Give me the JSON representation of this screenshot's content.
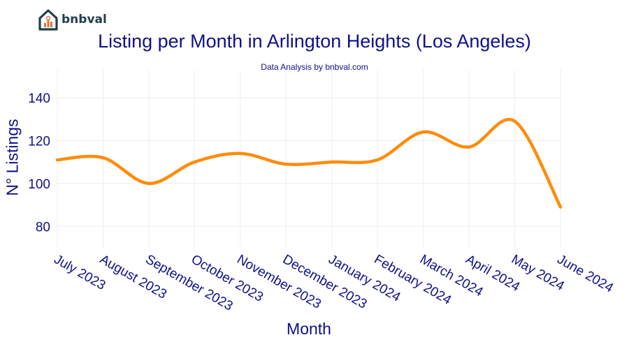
{
  "brand": {
    "name": "bnbval",
    "logo_icon": "house-chart-icon",
    "logo_color": "#1f3f4a",
    "logo_accent": "#e8733a"
  },
  "chart_data": {
    "type": "line",
    "title": "Listing per Month in Arlington Heights (Los Angeles)",
    "subtitle": "Data Analysis by bnbval.com",
    "xlabel": "Month",
    "ylabel": "N° Listings",
    "categories": [
      "July 2023",
      "August 2023",
      "September 2023",
      "October 2023",
      "November 2023",
      "December 2023",
      "January 2024",
      "February 2024",
      "March 2024",
      "April 2024",
      "May 2024",
      "June 2024"
    ],
    "series": [
      {
        "values": [
          111,
          112,
          100,
          110,
          114,
          109,
          110,
          111,
          124,
          117,
          129,
          89
        ],
        "color": "#ff8c0a"
      }
    ],
    "ylim": [
      70,
      153
    ],
    "yticks": [
      80,
      100,
      120,
      140
    ],
    "grid": true,
    "text_color": "#10108a",
    "grid_color": "#eeeeee"
  }
}
